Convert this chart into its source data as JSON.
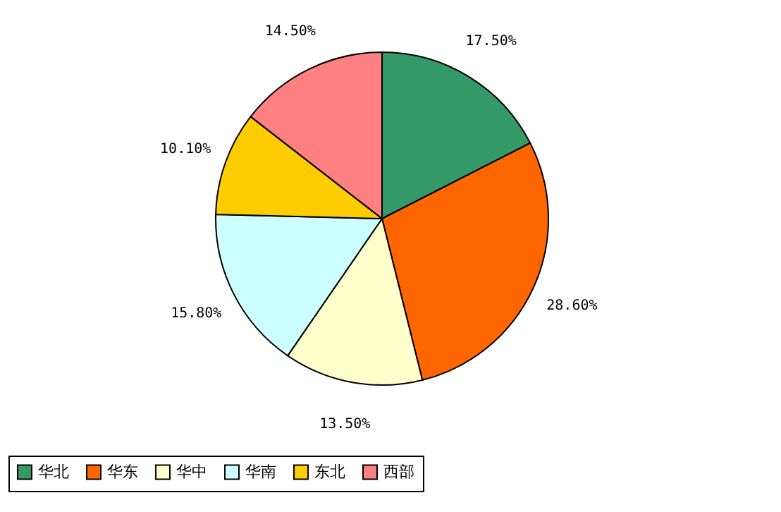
{
  "chart_data": {
    "type": "pie",
    "categories": [
      "华北",
      "华东",
      "华中",
      "华南",
      "东北",
      "西部"
    ],
    "values": [
      17.5,
      28.6,
      13.5,
      15.8,
      10.1,
      14.5
    ],
    "value_labels": [
      "17.50%",
      "28.60%",
      "13.50%",
      "15.80%",
      "10.10%",
      "14.50%"
    ],
    "colors": [
      "#339966",
      "#ff6600",
      "#ffffcc",
      "#ccffff",
      "#ffcc00",
      "#ff8080"
    ],
    "legend": "bottom"
  }
}
